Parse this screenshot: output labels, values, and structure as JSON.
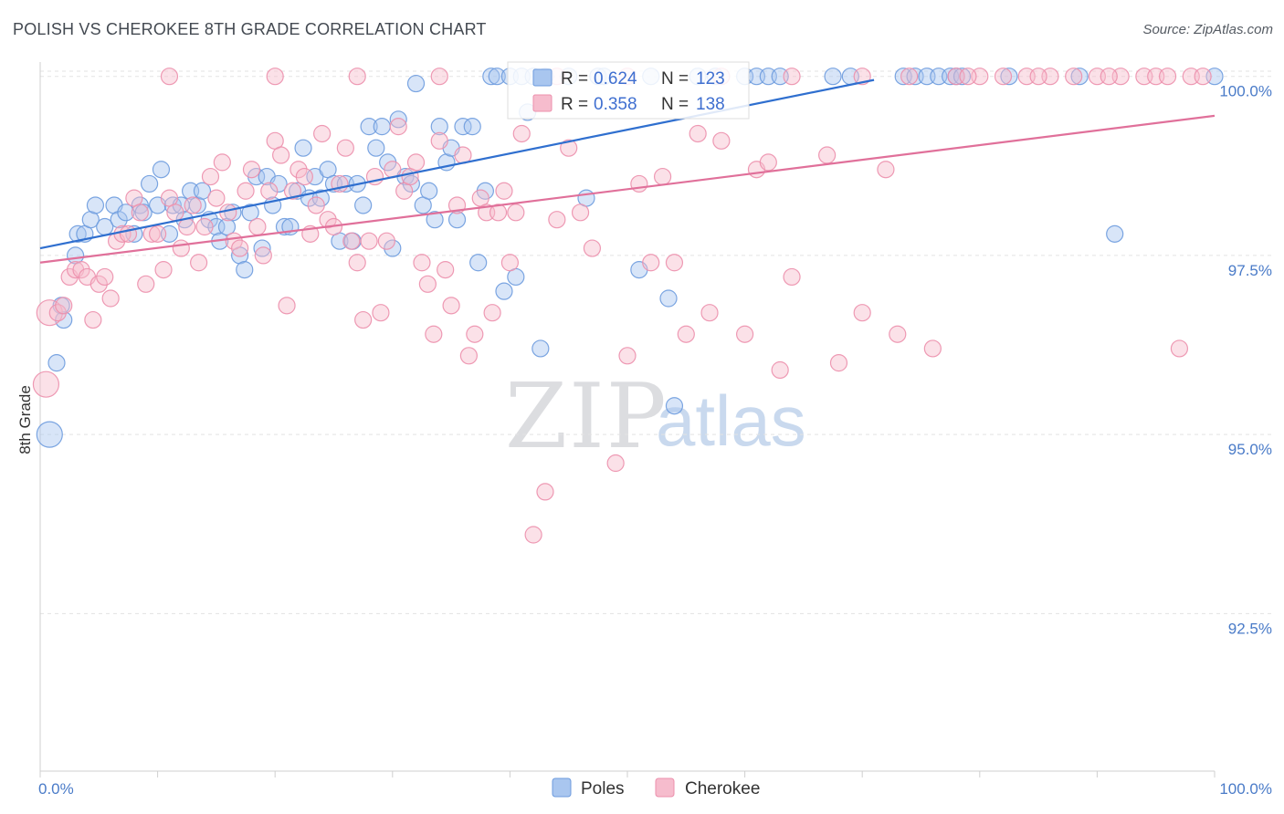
{
  "header": {
    "title": "POLISH VS CHEROKEE 8TH GRADE CORRELATION CHART",
    "source": "Source: ZipAtlas.com"
  },
  "watermark": {
    "zip": "ZIP",
    "atlas": "atlas"
  },
  "colors": {
    "poles_fill": "#a9c6ef",
    "poles_stroke": "#6d9bde",
    "poles_line": "#2f6fcf",
    "cherokee_fill": "#f6bccd",
    "cherokee_stroke": "#ec8fac",
    "cherokee_line": "#e0709a",
    "tick_text": "#4a7bc8",
    "grid": "#e3e3e3"
  },
  "chart_data": {
    "type": "scatter",
    "title": "POLISH VS CHEROKEE 8TH GRADE CORRELATION CHART",
    "xlabel": "",
    "ylabel": "8th Grade",
    "xlim": [
      0,
      100
    ],
    "ylim": [
      90.3,
      100.2
    ],
    "x_tick_labels": [
      "0.0%",
      "100.0%"
    ],
    "y_ticks": [
      92.5,
      95.0,
      97.5,
      100.0
    ],
    "y_tick_labels": [
      "92.5%",
      "95.0%",
      "97.5%",
      "100.0%"
    ],
    "grid": true,
    "legend": {
      "position": "top-center",
      "entries": [
        {
          "r_label": "R =",
          "r_value": "0.624",
          "n_label": "N =",
          "n_value": "123"
        },
        {
          "r_label": "R =",
          "r_value": "0.358",
          "n_label": "N =",
          "n_value": "138"
        }
      ]
    },
    "bottom_legend": [
      "Poles",
      "Cherokee"
    ],
    "series": [
      {
        "name": "Poles",
        "trendline": {
          "x": [
            0,
            71
          ],
          "y": [
            97.6,
            99.95
          ]
        },
        "points": [
          [
            0.8,
            95.0
          ],
          [
            1.4,
            96.0
          ],
          [
            2,
            96.6
          ],
          [
            1.8,
            96.8
          ],
          [
            3,
            97.5
          ],
          [
            3.2,
            97.8
          ],
          [
            3.8,
            97.8
          ],
          [
            4.3,
            98.0
          ],
          [
            4.7,
            98.2
          ],
          [
            5.5,
            97.9
          ],
          [
            6.3,
            98.2
          ],
          [
            6.7,
            98.0
          ],
          [
            7.3,
            98.1
          ],
          [
            8,
            97.8
          ],
          [
            8.5,
            98.2
          ],
          [
            8.8,
            98.1
          ],
          [
            9.3,
            98.5
          ],
          [
            10,
            98.2
          ],
          [
            10.3,
            98.7
          ],
          [
            11,
            97.8
          ],
          [
            11.3,
            98.2
          ],
          [
            12,
            98.2
          ],
          [
            12.3,
            98.0
          ],
          [
            12.8,
            98.4
          ],
          [
            13.4,
            98.2
          ],
          [
            13.8,
            98.4
          ],
          [
            14.4,
            98.0
          ],
          [
            15,
            97.9
          ],
          [
            15.3,
            97.7
          ],
          [
            15.9,
            97.9
          ],
          [
            16.4,
            98.1
          ],
          [
            17,
            97.5
          ],
          [
            17.4,
            97.3
          ],
          [
            17.9,
            98.1
          ],
          [
            18.4,
            98.6
          ],
          [
            18.9,
            97.6
          ],
          [
            19.3,
            98.6
          ],
          [
            19.8,
            98.2
          ],
          [
            20.3,
            98.5
          ],
          [
            20.8,
            97.9
          ],
          [
            21.3,
            97.9
          ],
          [
            21.9,
            98.4
          ],
          [
            22.4,
            99.0
          ],
          [
            22.9,
            98.3
          ],
          [
            23.4,
            98.6
          ],
          [
            23.9,
            98.3
          ],
          [
            24.5,
            98.7
          ],
          [
            25,
            98.5
          ],
          [
            25.5,
            97.7
          ],
          [
            26,
            98.5
          ],
          [
            26.6,
            97.7
          ],
          [
            27,
            98.5
          ],
          [
            27.5,
            98.2
          ],
          [
            28,
            99.3
          ],
          [
            28.6,
            99.0
          ],
          [
            29.1,
            99.3
          ],
          [
            29.6,
            98.8
          ],
          [
            30,
            97.6
          ],
          [
            30.5,
            99.4
          ],
          [
            31.1,
            98.6
          ],
          [
            31.6,
            98.5
          ],
          [
            32,
            99.9
          ],
          [
            32.6,
            98.2
          ],
          [
            33.1,
            98.4
          ],
          [
            33.6,
            98.0
          ],
          [
            34,
            99.3
          ],
          [
            34.6,
            98.8
          ],
          [
            35,
            99.0
          ],
          [
            35.5,
            98.0
          ],
          [
            36,
            99.3
          ],
          [
            36.8,
            99.3
          ],
          [
            37.3,
            97.4
          ],
          [
            37.9,
            98.4
          ],
          [
            38.4,
            100.0
          ],
          [
            38.9,
            100.0
          ],
          [
            39.5,
            97.0
          ],
          [
            40,
            100.0
          ],
          [
            40.5,
            97.2
          ],
          [
            41,
            100.0
          ],
          [
            41.5,
            99.5
          ],
          [
            42,
            100.0
          ],
          [
            42.6,
            96.2
          ],
          [
            43,
            100.0
          ],
          [
            45,
            100.0
          ],
          [
            46.5,
            98.3
          ],
          [
            47.5,
            100.0
          ],
          [
            48,
            100.0
          ],
          [
            51,
            97.3
          ],
          [
            52,
            100.0
          ],
          [
            53.5,
            96.9
          ],
          [
            54,
            95.4
          ],
          [
            56,
            100.0
          ],
          [
            57.5,
            100.0
          ],
          [
            60,
            100.0
          ],
          [
            61,
            100.0
          ],
          [
            62,
            100.0
          ],
          [
            63,
            100.0
          ],
          [
            67.5,
            100.0
          ],
          [
            69,
            100.0
          ],
          [
            73.5,
            100.0
          ],
          [
            74.5,
            100.0
          ],
          [
            75.5,
            100.0
          ],
          [
            76.5,
            100.0
          ],
          [
            77.5,
            100.0
          ],
          [
            78,
            100.0
          ],
          [
            78.5,
            100.0
          ],
          [
            82.5,
            100.0
          ],
          [
            88.5,
            100.0
          ],
          [
            91.5,
            97.8
          ],
          [
            100,
            100.0
          ]
        ]
      },
      {
        "name": "Cherokee",
        "trendline": {
          "x": [
            0,
            100
          ],
          "y": [
            97.4,
            99.45
          ]
        },
        "points": [
          [
            0.5,
            95.7
          ],
          [
            0.8,
            96.7
          ],
          [
            1.5,
            96.7
          ],
          [
            2,
            96.8
          ],
          [
            2.5,
            97.2
          ],
          [
            3,
            97.3
          ],
          [
            3.5,
            97.3
          ],
          [
            4,
            97.2
          ],
          [
            4.5,
            96.6
          ],
          [
            5,
            97.1
          ],
          [
            5.5,
            97.2
          ],
          [
            6,
            96.9
          ],
          [
            6.5,
            97.7
          ],
          [
            7,
            97.8
          ],
          [
            7.5,
            97.8
          ],
          [
            8,
            98.3
          ],
          [
            8.5,
            98.1
          ],
          [
            9,
            97.1
          ],
          [
            9.5,
            97.8
          ],
          [
            10,
            97.8
          ],
          [
            10.5,
            97.3
          ],
          [
            11,
            98.3
          ],
          [
            11.5,
            98.1
          ],
          [
            12,
            97.6
          ],
          [
            12.5,
            97.9
          ],
          [
            13,
            98.2
          ],
          [
            13.5,
            97.4
          ],
          [
            14,
            97.9
          ],
          [
            14.5,
            98.6
          ],
          [
            15,
            98.3
          ],
          [
            15.5,
            98.8
          ],
          [
            16,
            98.1
          ],
          [
            16.5,
            97.7
          ],
          [
            17,
            97.6
          ],
          [
            17.5,
            98.4
          ],
          [
            18,
            98.7
          ],
          [
            18.5,
            97.9
          ],
          [
            19,
            97.5
          ],
          [
            19.5,
            98.4
          ],
          [
            20,
            99.1
          ],
          [
            20.5,
            98.9
          ],
          [
            21,
            96.8
          ],
          [
            21.5,
            98.4
          ],
          [
            22,
            98.7
          ],
          [
            22.5,
            98.6
          ],
          [
            23,
            97.8
          ],
          [
            23.5,
            98.2
          ],
          [
            24,
            99.2
          ],
          [
            24.5,
            98.0
          ],
          [
            25,
            97.9
          ],
          [
            25.5,
            98.5
          ],
          [
            26,
            99.0
          ],
          [
            26.5,
            97.7
          ],
          [
            27,
            97.4
          ],
          [
            27.5,
            96.6
          ],
          [
            28,
            97.7
          ],
          [
            28.5,
            98.6
          ],
          [
            29,
            96.7
          ],
          [
            29.5,
            97.7
          ],
          [
            30,
            98.7
          ],
          [
            30.5,
            99.3
          ],
          [
            31,
            98.4
          ],
          [
            31.5,
            98.6
          ],
          [
            32,
            98.8
          ],
          [
            32.5,
            97.4
          ],
          [
            33,
            97.1
          ],
          [
            33.5,
            96.4
          ],
          [
            34,
            99.1
          ],
          [
            34.5,
            97.3
          ],
          [
            35,
            96.8
          ],
          [
            35.5,
            98.2
          ],
          [
            36,
            98.9
          ],
          [
            36.5,
            96.1
          ],
          [
            37,
            96.4
          ],
          [
            37.5,
            98.3
          ],
          [
            38,
            98.1
          ],
          [
            38.5,
            96.7
          ],
          [
            39,
            98.1
          ],
          [
            39.5,
            98.4
          ],
          [
            40,
            97.4
          ],
          [
            40.5,
            98.1
          ],
          [
            41,
            99.2
          ],
          [
            42,
            93.6
          ],
          [
            43,
            94.2
          ],
          [
            44,
            98.0
          ],
          [
            45,
            99.0
          ],
          [
            46,
            98.1
          ],
          [
            47,
            97.6
          ],
          [
            49,
            94.6
          ],
          [
            50,
            96.1
          ],
          [
            51,
            98.5
          ],
          [
            52,
            97.4
          ],
          [
            53,
            98.6
          ],
          [
            54,
            97.4
          ],
          [
            55,
            96.4
          ],
          [
            56,
            99.2
          ],
          [
            57,
            96.7
          ],
          [
            58,
            99.1
          ],
          [
            60,
            96.4
          ],
          [
            61,
            98.7
          ],
          [
            62,
            98.8
          ],
          [
            63,
            95.9
          ],
          [
            64,
            97.2
          ],
          [
            67,
            98.9
          ],
          [
            68,
            96.0
          ],
          [
            70,
            96.7
          ],
          [
            72,
            98.7
          ],
          [
            73,
            96.4
          ],
          [
            76,
            96.2
          ],
          [
            78,
            100.0
          ],
          [
            80,
            100.0
          ],
          [
            82,
            100.0
          ],
          [
            84,
            100.0
          ],
          [
            86,
            100.0
          ],
          [
            88,
            100.0
          ],
          [
            90,
            100.0
          ],
          [
            92,
            100.0
          ],
          [
            94,
            100.0
          ],
          [
            95,
            100.0
          ],
          [
            96,
            100.0
          ],
          [
            97,
            96.2
          ],
          [
            98,
            100.0
          ],
          [
            99,
            100.0
          ],
          [
            11,
            100.0
          ],
          [
            20,
            100.0
          ],
          [
            27,
            100.0
          ],
          [
            34,
            100.0
          ],
          [
            44,
            100.0
          ],
          [
            50,
            100.0
          ],
          [
            58,
            100.0
          ],
          [
            64,
            100.0
          ],
          [
            70,
            100.0
          ],
          [
            74,
            100.0
          ],
          [
            79,
            100.0
          ],
          [
            85,
            100.0
          ],
          [
            91,
            100.0
          ]
        ]
      }
    ]
  }
}
